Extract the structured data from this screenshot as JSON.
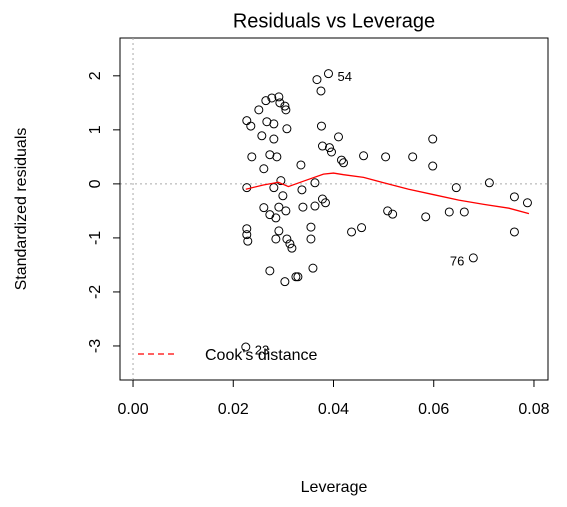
{
  "chart_data": {
    "type": "scatter",
    "title": "Residuals vs Leverage",
    "x_label": "Leverage",
    "y_label": "Standardized residuals",
    "xlim": [
      -0.0026,
      0.0828
    ],
    "ylim": [
      -3.63,
      2.7
    ],
    "xticks": [
      {
        "value": 0,
        "label": "0.00"
      },
      {
        "value": 0.02,
        "label": "0.02"
      },
      {
        "value": 0.04,
        "label": "0.04"
      },
      {
        "value": 0.06,
        "label": "0.06"
      },
      {
        "value": 0.08,
        "label": "0.08"
      }
    ],
    "yticks": [
      -3,
      -2,
      -1,
      0,
      1,
      2
    ],
    "hline": 0,
    "vline": 0,
    "points": {
      "x": [
        0.0227,
        0.0235,
        0.0237,
        0.0227,
        0.0227,
        0.0227,
        0.0229,
        0.0225,
        0.0251,
        0.0257,
        0.0261,
        0.0265,
        0.0267,
        0.0273,
        0.0277,
        0.0281,
        0.0281,
        0.0287,
        0.0291,
        0.0293,
        0.0295,
        0.0303,
        0.0305,
        0.0307,
        0.0261,
        0.0273,
        0.0285,
        0.0285,
        0.0273,
        0.0281,
        0.0291,
        0.0291,
        0.0299,
        0.0305,
        0.0307,
        0.0313,
        0.0317,
        0.0303,
        0.0325,
        0.0329,
        0.0335,
        0.0337,
        0.0339,
        0.0355,
        0.0355,
        0.0359,
        0.0363,
        0.0363,
        0.0367,
        0.0375,
        0.0376,
        0.0378,
        0.0378,
        0.0384,
        0.039,
        0.0392,
        0.0396,
        0.041,
        0.0416,
        0.042,
        0.046,
        0.0436,
        0.0456,
        0.0504,
        0.0508,
        0.0518,
        0.0558,
        0.0584,
        0.0598,
        0.0598,
        0.0631,
        0.0645,
        0.0661,
        0.0679,
        0.0711,
        0.0761,
        0.0761,
        0.0787
      ],
      "values": [
        1.17,
        1.07,
        0.5,
        -0.07,
        -0.83,
        -0.94,
        -1.06,
        -3.02,
        1.37,
        0.89,
        0.28,
        1.54,
        1.15,
        0.54,
        1.59,
        1.11,
        0.83,
        0.5,
        1.61,
        1.5,
        0.06,
        1.44,
        1.37,
        1.02,
        -0.44,
        -0.57,
        -0.63,
        -1.02,
        -1.61,
        -0.07,
        -0.43,
        -0.87,
        -0.22,
        -0.5,
        -1.02,
        -1.11,
        -1.19,
        -1.81,
        -1.72,
        -1.72,
        0.35,
        -0.11,
        -0.43,
        -0.8,
        -1.02,
        -1.56,
        0.02,
        -0.41,
        1.93,
        1.72,
        1.07,
        0.7,
        -0.28,
        -0.35,
        2.04,
        0.67,
        0.59,
        0.87,
        0.44,
        0.39,
        0.52,
        -0.89,
        -0.81,
        0.5,
        -0.5,
        -0.56,
        0.5,
        -0.61,
        0.83,
        0.33,
        -0.52,
        -0.07,
        -0.52,
        -1.37,
        0.02,
        -0.24,
        -0.89,
        -0.35
      ],
      "labels": [
        null,
        null,
        null,
        null,
        null,
        null,
        null,
        "23",
        null,
        null,
        null,
        null,
        null,
        null,
        null,
        null,
        null,
        null,
        null,
        null,
        null,
        null,
        null,
        null,
        null,
        null,
        null,
        null,
        null,
        null,
        null,
        null,
        null,
        null,
        null,
        null,
        null,
        null,
        null,
        null,
        null,
        null,
        null,
        null,
        null,
        null,
        null,
        null,
        null,
        null,
        null,
        null,
        null,
        null,
        "54",
        null,
        null,
        null,
        null,
        null,
        null,
        null,
        null,
        null,
        null,
        null,
        null,
        null,
        null,
        null,
        null,
        null,
        null,
        "76",
        null,
        null,
        null,
        null
      ]
    },
    "smooth": {
      "x": [
        0.0225,
        0.026,
        0.029,
        0.031,
        0.034,
        0.038,
        0.04,
        0.042,
        0.046,
        0.05,
        0.055,
        0.06,
        0.065,
        0.07,
        0.075,
        0.079
      ],
      "values": [
        -0.1,
        -0.02,
        0.03,
        -0.05,
        0.05,
        0.18,
        0.2,
        0.17,
        0.12,
        0.02,
        -0.1,
        -0.2,
        -0.3,
        -0.38,
        -0.45,
        -0.55
      ],
      "color": "#ff0000"
    },
    "legend": {
      "name": "Cook's distance",
      "color": "#ff0000",
      "position": "bottom-left"
    }
  }
}
